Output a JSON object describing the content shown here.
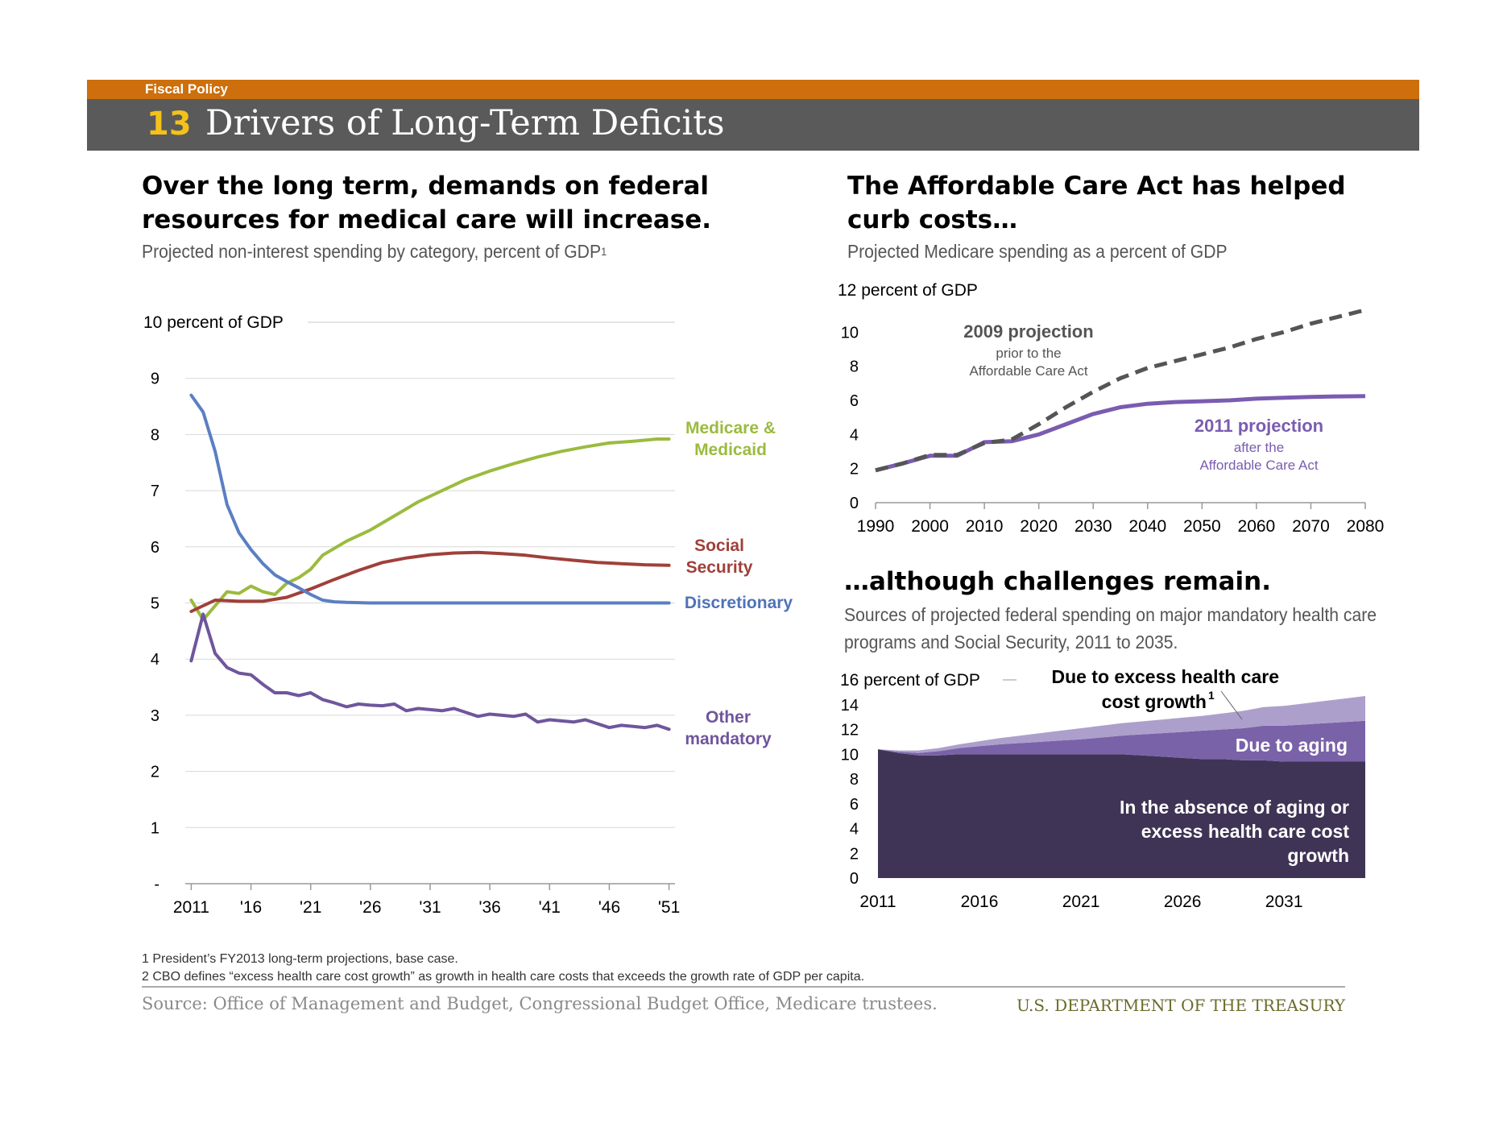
{
  "header": {
    "section_label": "Fiscal Policy",
    "slide_number": "13",
    "title": "Drivers of Long-Term Deficits"
  },
  "left_panel": {
    "heading_line1": "Over the long term, demands on federal",
    "heading_line2": "resources for medical care will increase.",
    "subtitle": "Projected non-interest spending by category, percent of GDP",
    "subtitle_sup": "1"
  },
  "right_top_panel": {
    "heading_line1": "The Affordable Care Act has helped",
    "heading_line2": "curb costs…",
    "subtitle": "Projected Medicare spending as a percent of GDP"
  },
  "right_bottom_panel": {
    "heading": "…although challenges remain.",
    "subtitle_line1": "Sources of projected federal spending on major mandatory health care",
    "subtitle_line2": "programs and Social Security, 2011 to 2035."
  },
  "footnotes": [
    "1 President’s FY2013 long-term projections, base case.",
    "2 CBO defines “excess health care cost growth” as growth in health care costs that exceeds the growth rate of GDP per capita."
  ],
  "source": "Source: Office of Management and Budget, Congressional Budget Office, Medicare trustees.",
  "department": "U.S. DEPARTMENT OF THE TREASURY",
  "colors": {
    "orange": "#cc6f0c",
    "title_bar": "#5a5a5a",
    "number_yellow": "#f4c21a",
    "medicare": "#9bbb3f",
    "social_security": "#a0403a",
    "discretionary": "#5b7fc2",
    "other_mandatory": "#6f569c",
    "projection_2009": "#555555",
    "projection_2011": "#7a5cb0",
    "area_absence": "#3f3455",
    "area_aging": "#7a62a8",
    "area_excess": "#ad9fcb"
  },
  "chart_data": [
    {
      "type": "line",
      "ylabel": "10 percent of GDP",
      "ylim": [
        0,
        10
      ],
      "yticks": [
        0,
        1,
        2,
        3,
        4,
        5,
        6,
        7,
        8,
        9,
        10
      ],
      "ytick_labels": [
        "-",
        "1",
        "2",
        "3",
        "4",
        "5",
        "6",
        "7",
        "8",
        "9"
      ],
      "xlim": [
        2010.5,
        2051.5
      ],
      "xticks": [
        2011,
        2016,
        2021,
        2026,
        2031,
        2036,
        2041,
        2046,
        2051
      ],
      "xtick_labels": [
        "2011",
        "'16",
        "'21",
        "'26",
        "'31",
        "'36",
        "'41",
        "'46",
        "'51"
      ],
      "grid": true,
      "series": [
        {
          "name": "Medicare & Medicaid",
          "label_lines": [
            "Medicare &",
            "Medicaid"
          ],
          "color": "#9bbb3f",
          "x": [
            2011,
            2012,
            2013,
            2014,
            2015,
            2016,
            2017,
            2018,
            2019,
            2020,
            2021,
            2022,
            2024,
            2026,
            2028,
            2030,
            2032,
            2034,
            2036,
            2038,
            2040,
            2042,
            2044,
            2046,
            2048,
            2050,
            2051
          ],
          "y": [
            5.05,
            4.7,
            4.95,
            5.2,
            5.17,
            5.3,
            5.2,
            5.15,
            5.35,
            5.45,
            5.6,
            5.85,
            6.1,
            6.3,
            6.55,
            6.8,
            7.0,
            7.2,
            7.35,
            7.48,
            7.6,
            7.7,
            7.78,
            7.85,
            7.88,
            7.92,
            7.92
          ]
        },
        {
          "name": "Social Security",
          "label_lines": [
            "Social",
            "Security"
          ],
          "color": "#a0403a",
          "x": [
            2011,
            2012,
            2013,
            2015,
            2017,
            2019,
            2021,
            2023,
            2025,
            2027,
            2029,
            2031,
            2033,
            2035,
            2037,
            2039,
            2041,
            2043,
            2045,
            2047,
            2049,
            2051
          ],
          "y": [
            4.85,
            4.95,
            5.05,
            5.03,
            5.03,
            5.1,
            5.25,
            5.42,
            5.58,
            5.72,
            5.8,
            5.86,
            5.89,
            5.9,
            5.88,
            5.85,
            5.8,
            5.76,
            5.72,
            5.7,
            5.68,
            5.67
          ],
          "label_color": "#a0403a"
        },
        {
          "name": "Discretionary",
          "label_lines": [
            "Discretionary"
          ],
          "color": "#5b7fc2",
          "x": [
            2011,
            2012,
            2013,
            2014,
            2015,
            2016,
            2017,
            2018,
            2019,
            2020,
            2021,
            2022,
            2023,
            2024,
            2026,
            2030,
            2040,
            2051
          ],
          "y": [
            8.7,
            8.4,
            7.7,
            6.75,
            6.25,
            5.95,
            5.7,
            5.5,
            5.38,
            5.27,
            5.15,
            5.05,
            5.02,
            5.01,
            5.0,
            5.0,
            5.0,
            5.0
          ]
        },
        {
          "name": "Other mandatory",
          "label_lines": [
            "Other",
            "mandatory"
          ],
          "color": "#6f569c",
          "x": [
            2011,
            2012,
            2013,
            2014,
            2015,
            2016,
            2017,
            2018,
            2019,
            2020,
            2021,
            2022,
            2023,
            2024,
            2025,
            2026,
            2027,
            2028,
            2029,
            2030,
            2031,
            2032,
            2033,
            2034,
            2035,
            2036,
            2037,
            2038,
            2039,
            2040,
            2041,
            2042,
            2043,
            2044,
            2045,
            2046,
            2047,
            2048,
            2049,
            2050,
            2051
          ],
          "y": [
            3.97,
            4.8,
            4.1,
            3.85,
            3.75,
            3.72,
            3.55,
            3.4,
            3.4,
            3.35,
            3.4,
            3.28,
            3.22,
            3.15,
            3.2,
            3.18,
            3.17,
            3.2,
            3.08,
            3.12,
            3.1,
            3.08,
            3.12,
            3.05,
            2.98,
            3.02,
            3.0,
            2.98,
            3.02,
            2.88,
            2.92,
            2.9,
            2.88,
            2.92,
            2.85,
            2.78,
            2.82,
            2.8,
            2.78,
            2.82,
            2.75
          ]
        }
      ]
    },
    {
      "type": "line",
      "ylabel": "12 percent of GDP",
      "ylim": [
        0,
        12
      ],
      "yticks": [
        0,
        2,
        4,
        6,
        8,
        10,
        12
      ],
      "ytick_labels": [
        "0",
        "2",
        "4",
        "6",
        "8",
        "10"
      ],
      "xlim": [
        1990,
        2080
      ],
      "xticks": [
        1990,
        2000,
        2010,
        2020,
        2030,
        2040,
        2050,
        2060,
        2070,
        2080
      ],
      "xtick_labels": [
        "1990",
        "2000",
        "2010",
        "2020",
        "2030",
        "2040",
        "2050",
        "2060",
        "2070",
        "2080"
      ],
      "grid": false,
      "series": [
        {
          "name": "2009 projection",
          "annotation_lines": [
            "prior to the",
            "Affordable Care Act"
          ],
          "style": "dashed",
          "color": "#555555",
          "x": [
            1990,
            1995,
            2000,
            2005,
            2010,
            2015,
            2020,
            2025,
            2030,
            2035,
            2040,
            2045,
            2050,
            2055,
            2060,
            2065,
            2070,
            2075,
            2080
          ],
          "y": [
            1.9,
            2.3,
            2.8,
            2.8,
            3.5,
            3.7,
            4.6,
            5.6,
            6.5,
            7.3,
            7.9,
            8.3,
            8.7,
            9.1,
            9.6,
            10.0,
            10.5,
            10.9,
            11.3
          ]
        },
        {
          "name": "2011 projection",
          "annotation_lines": [
            "after the",
            "Affordable Care Act"
          ],
          "style": "solid",
          "color": "#7a5cb0",
          "x": [
            1990,
            1995,
            2000,
            2005,
            2010,
            2015,
            2020,
            2025,
            2030,
            2035,
            2040,
            2045,
            2050,
            2055,
            2060,
            2065,
            2070,
            2075,
            2080
          ],
          "y": [
            1.9,
            2.3,
            2.75,
            2.75,
            3.55,
            3.6,
            4.0,
            4.6,
            5.2,
            5.6,
            5.8,
            5.9,
            5.95,
            6.0,
            6.1,
            6.15,
            6.2,
            6.23,
            6.25
          ]
        }
      ]
    },
    {
      "type": "area",
      "ylabel": "16 percent of GDP",
      "ylim": [
        0,
        16
      ],
      "yticks": [
        0,
        2,
        4,
        6,
        8,
        10,
        12,
        14,
        16
      ],
      "ytick_labels": [
        "0",
        "2",
        "4",
        "6",
        "8",
        "10",
        "12",
        "14"
      ],
      "xlim": [
        2011,
        2035
      ],
      "xticks": [
        2011,
        2016,
        2021,
        2026,
        2031
      ],
      "xtick_labels": [
        "2011",
        "2016",
        "2021",
        "2026",
        "2031"
      ],
      "grid": false,
      "x": [
        2011,
        2012,
        2013,
        2014,
        2015,
        2016,
        2017,
        2018,
        2019,
        2020,
        2021,
        2022,
        2023,
        2024,
        2025,
        2026,
        2027,
        2028,
        2029,
        2030,
        2031,
        2032,
        2033,
        2034,
        2035
      ],
      "series": [
        {
          "name": "In the absence of aging or excess health care cost growth",
          "label_lines": [
            "In the absence of aging or",
            "excess health care cost",
            "growth"
          ],
          "color": "#3f3455",
          "values": [
            10.4,
            10.1,
            9.9,
            9.9,
            10.0,
            10.0,
            10.0,
            10.0,
            10.0,
            10.0,
            10.0,
            10.0,
            10.0,
            9.9,
            9.8,
            9.7,
            9.6,
            9.6,
            9.5,
            9.5,
            9.4,
            9.4,
            9.4,
            9.4,
            9.4
          ]
        },
        {
          "name": "Due to aging",
          "label_lines": [
            "Due to aging"
          ],
          "color": "#7a62a8",
          "values": [
            0.0,
            0.1,
            0.2,
            0.35,
            0.5,
            0.65,
            0.8,
            0.9,
            1.0,
            1.1,
            1.2,
            1.35,
            1.5,
            1.7,
            1.9,
            2.1,
            2.3,
            2.4,
            2.6,
            2.8,
            2.9,
            3.0,
            3.1,
            3.2,
            3.3
          ]
        },
        {
          "name": "Due to excess health care cost growth",
          "label_lines": [
            "Due to excess  health care",
            "cost growth"
          ],
          "label_sup": "1",
          "color": "#ad9fcb",
          "values": [
            0.0,
            0.1,
            0.2,
            0.25,
            0.3,
            0.4,
            0.5,
            0.6,
            0.7,
            0.8,
            0.9,
            0.95,
            1.0,
            1.05,
            1.1,
            1.15,
            1.2,
            1.3,
            1.4,
            1.5,
            1.6,
            1.7,
            1.8,
            1.9,
            2.0
          ]
        }
      ]
    }
  ]
}
